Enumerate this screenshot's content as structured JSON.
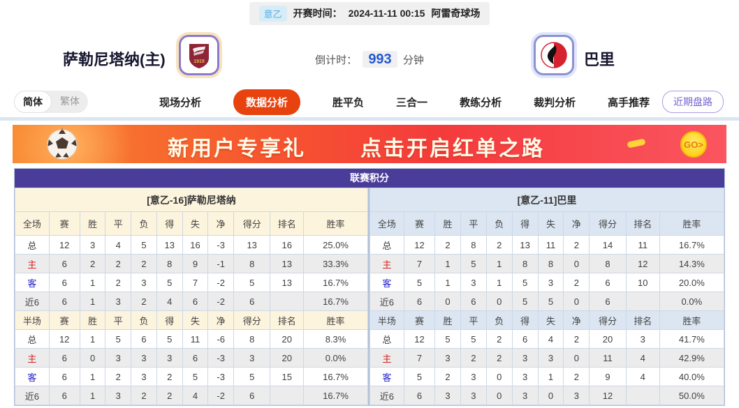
{
  "colors": {
    "header_purple": "#4a3c99",
    "active_tab_orange": "#e8430f",
    "banner_gradient": [
      "#f8872e",
      "#f43b3c",
      "#fa5560"
    ],
    "home_panel_bg": "#fdf4de",
    "away_panel_bg": "#dce6f2",
    "home_row_label_red": "#d62222",
    "away_row_label_blue": "#2222cc",
    "countdown_blue": "#2458d2",
    "league_badge_blue": "#55aede"
  },
  "top_bar": {
    "league": "意乙",
    "kickoff_label": "开赛时间：",
    "kickoff_time": "2024-11-11 00:15",
    "venue": "阿雷奇球场"
  },
  "match_header": {
    "home_team": "萨勒尼塔纳(主)",
    "away_team": "巴里",
    "home_logo_year": "1919",
    "countdown_label": "倒计时：",
    "countdown_value": "993",
    "countdown_unit": "分钟"
  },
  "nav": {
    "lang_simplified": "简体",
    "lang_traditional": "繁体",
    "tabs": [
      "现场分析",
      "数据分析",
      "胜平负",
      "三合一",
      "教练分析",
      "裁判分析",
      "高手推荐"
    ],
    "active_tab": "数据分析",
    "recent_button": "近期盘路"
  },
  "banner": {
    "title": "新用户专享礼",
    "subtitle": "点击开启红单之路",
    "go_label": "GO>"
  },
  "table": {
    "title": "联赛积分",
    "columns_full": [
      "全场",
      "赛",
      "胜",
      "平",
      "负",
      "得",
      "失",
      "净",
      "得分",
      "排名",
      "胜率"
    ],
    "columns_half": [
      "半场",
      "赛",
      "胜",
      "平",
      "负",
      "得",
      "失",
      "净",
      "得分",
      "排名",
      "胜率"
    ],
    "home": {
      "team_label": "[意乙-16]萨勒尼塔纳",
      "full_rows": [
        {
          "label": "总",
          "cells": [
            "12",
            "3",
            "4",
            "5",
            "13",
            "16",
            "-3",
            "13",
            "16",
            "25.0%"
          ]
        },
        {
          "label": "主",
          "cells": [
            "6",
            "2",
            "2",
            "2",
            "8",
            "9",
            "-1",
            "8",
            "13",
            "33.3%"
          ]
        },
        {
          "label": "客",
          "cells": [
            "6",
            "1",
            "2",
            "3",
            "5",
            "7",
            "-2",
            "5",
            "13",
            "16.7%"
          ]
        },
        {
          "label": "近6",
          "cells": [
            "6",
            "1",
            "3",
            "2",
            "4",
            "6",
            "-2",
            "6",
            "",
            "16.7%"
          ]
        }
      ],
      "half_rows": [
        {
          "label": "总",
          "cells": [
            "12",
            "1",
            "5",
            "6",
            "5",
            "11",
            "-6",
            "8",
            "20",
            "8.3%"
          ]
        },
        {
          "label": "主",
          "cells": [
            "6",
            "0",
            "3",
            "3",
            "3",
            "6",
            "-3",
            "3",
            "20",
            "0.0%"
          ]
        },
        {
          "label": "客",
          "cells": [
            "6",
            "1",
            "2",
            "3",
            "2",
            "5",
            "-3",
            "5",
            "15",
            "16.7%"
          ]
        },
        {
          "label": "近6",
          "cells": [
            "6",
            "1",
            "3",
            "2",
            "2",
            "4",
            "-2",
            "6",
            "",
            "16.7%"
          ]
        }
      ]
    },
    "away": {
      "team_label": "[意乙-11]巴里",
      "full_rows": [
        {
          "label": "总",
          "cells": [
            "12",
            "2",
            "8",
            "2",
            "13",
            "11",
            "2",
            "14",
            "11",
            "16.7%"
          ]
        },
        {
          "label": "主",
          "cells": [
            "7",
            "1",
            "5",
            "1",
            "8",
            "8",
            "0",
            "8",
            "12",
            "14.3%"
          ]
        },
        {
          "label": "客",
          "cells": [
            "5",
            "1",
            "3",
            "1",
            "5",
            "3",
            "2",
            "6",
            "10",
            "20.0%"
          ]
        },
        {
          "label": "近6",
          "cells": [
            "6",
            "0",
            "6",
            "0",
            "5",
            "5",
            "0",
            "6",
            "",
            "0.0%"
          ]
        }
      ],
      "half_rows": [
        {
          "label": "总",
          "cells": [
            "12",
            "5",
            "5",
            "2",
            "6",
            "4",
            "2",
            "20",
            "3",
            "41.7%"
          ]
        },
        {
          "label": "主",
          "cells": [
            "7",
            "3",
            "2",
            "2",
            "3",
            "3",
            "0",
            "11",
            "4",
            "42.9%"
          ]
        },
        {
          "label": "客",
          "cells": [
            "5",
            "2",
            "3",
            "0",
            "3",
            "1",
            "2",
            "9",
            "4",
            "40.0%"
          ]
        },
        {
          "label": "近6",
          "cells": [
            "6",
            "3",
            "3",
            "0",
            "3",
            "0",
            "3",
            "12",
            "",
            "50.0%"
          ]
        }
      ]
    }
  }
}
